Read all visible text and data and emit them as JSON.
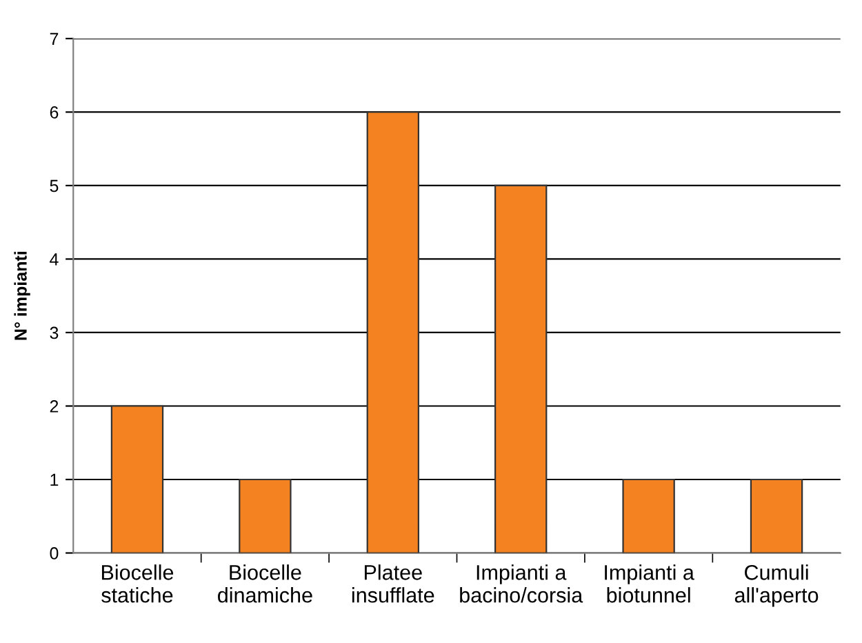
{
  "chart_data": {
    "type": "bar",
    "ylabel": "N° impianti",
    "categories": [
      "Biocelle\nstatiche",
      "Biocelle\ndinamiche",
      "Platee\ninsufflate",
      "Impianti a\nbacino/corsia",
      "Impianti a\nbiotunnel",
      "Cumuli\nall'aperto"
    ],
    "values": [
      2,
      1,
      6,
      5,
      1,
      1
    ],
    "color": "#f58220",
    "ylim": [
      0,
      7
    ],
    "yticks": [
      0,
      1,
      2,
      3,
      4,
      5,
      6,
      7
    ],
    "grid": "y"
  }
}
